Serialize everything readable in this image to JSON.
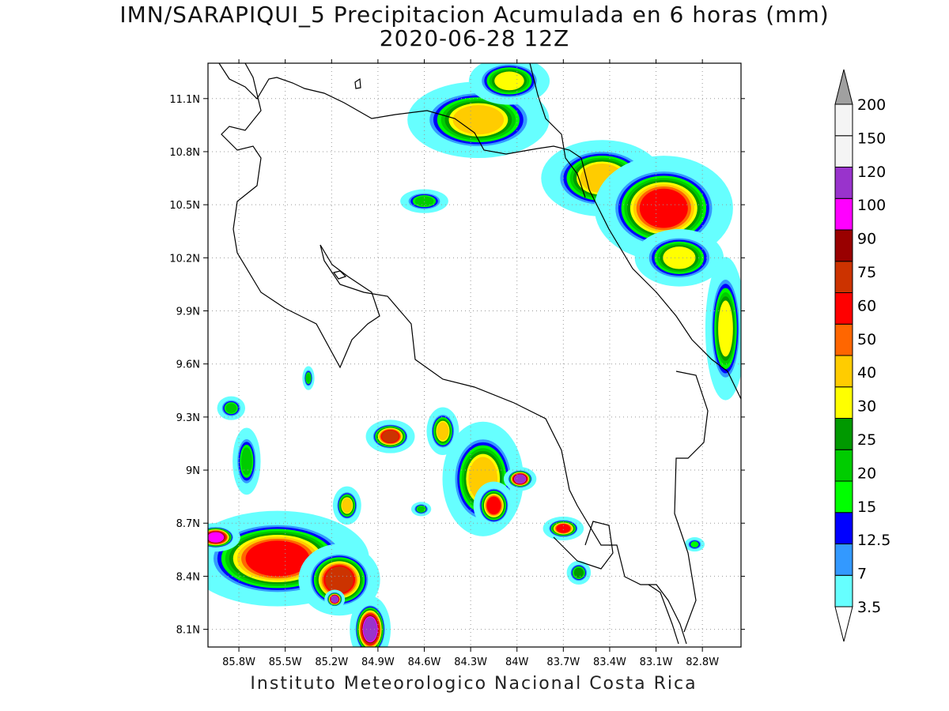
{
  "title": {
    "line1": "IMN/SARAPIQUI_5 Precipitacion Acumulada en 6 horas (mm)",
    "line2": "2020-06-28 12Z"
  },
  "credit": "Instituto Meteorologico Nacional Costa Rica",
  "map": {
    "lon_range": [
      -86.0,
      -82.55
    ],
    "lat_range": [
      8.0,
      11.3
    ],
    "lon_ticks": [
      {
        "value": -85.8,
        "label": "85.8W"
      },
      {
        "value": -85.5,
        "label": "85.5W"
      },
      {
        "value": -85.2,
        "label": "85.2W"
      },
      {
        "value": -84.9,
        "label": "84.9W"
      },
      {
        "value": -84.6,
        "label": "84.6W"
      },
      {
        "value": -84.3,
        "label": "84.3W"
      },
      {
        "value": -84.0,
        "label": "84W"
      },
      {
        "value": -83.7,
        "label": "83.7W"
      },
      {
        "value": -83.4,
        "label": "83.4W"
      },
      {
        "value": -83.1,
        "label": "83.1W"
      },
      {
        "value": -82.8,
        "label": "82.8W"
      }
    ],
    "lat_ticks": [
      {
        "value": 8.1,
        "label": "8.1N"
      },
      {
        "value": 8.4,
        "label": "8.4N"
      },
      {
        "value": 8.7,
        "label": "8.7N"
      },
      {
        "value": 9.0,
        "label": "9N"
      },
      {
        "value": 9.3,
        "label": "9.3N"
      },
      {
        "value": 9.6,
        "label": "9.6N"
      },
      {
        "value": 9.9,
        "label": "9.9N"
      },
      {
        "value": 10.2,
        "label": "10.2N"
      },
      {
        "value": 10.5,
        "label": "10.5N"
      },
      {
        "value": 10.8,
        "label": "10.8N"
      },
      {
        "value": 11.1,
        "label": "11.1N"
      }
    ],
    "grid": "dotted"
  },
  "colorbar": {
    "levels": [
      "3.5",
      "7",
      "12.5",
      "15",
      "20",
      "25",
      "30",
      "40",
      "50",
      "60",
      "75",
      "90",
      "100",
      "120",
      "150",
      "200"
    ],
    "colors": [
      "#66ffff",
      "#3399ff",
      "#0000ff",
      "#00ff00",
      "#00cc00",
      "#009900",
      "#ffff00",
      "#ffcc00",
      "#ff6600",
      "#ff0000",
      "#cc3300",
      "#990000",
      "#ff00ff",
      "#9933cc",
      "#f4f4f4",
      "#a0a0a0"
    ],
    "extend": "both"
  },
  "precip_cells": [
    {
      "lon": -84.25,
      "lat": 10.98,
      "rx": 0.35,
      "ry": 0.16,
      "level": 40
    },
    {
      "lon": -84.05,
      "lat": 11.2,
      "rx": 0.2,
      "ry": 0.1,
      "level": 30
    },
    {
      "lon": -83.45,
      "lat": 10.65,
      "rx": 0.3,
      "ry": 0.16,
      "level": 40
    },
    {
      "lon": -83.05,
      "lat": 10.48,
      "rx": 0.34,
      "ry": 0.22,
      "level": 60
    },
    {
      "lon": -82.95,
      "lat": 10.2,
      "rx": 0.22,
      "ry": 0.12,
      "level": 30
    },
    {
      "lon": -82.65,
      "lat": 9.8,
      "rx": 0.1,
      "ry": 0.3,
      "level": 30
    },
    {
      "lon": -84.6,
      "lat": 10.52,
      "rx": 0.12,
      "ry": 0.05,
      "level": 20
    },
    {
      "lon": -85.55,
      "lat": 8.5,
      "rx": 0.45,
      "ry": 0.2,
      "level": 60
    },
    {
      "lon": -85.15,
      "lat": 8.38,
      "rx": 0.2,
      "ry": 0.15,
      "level": 75
    },
    {
      "lon": -84.95,
      "lat": 8.1,
      "rx": 0.1,
      "ry": 0.14,
      "level": 120
    },
    {
      "lon": -85.95,
      "lat": 8.62,
      "rx": 0.12,
      "ry": 0.06,
      "level": 100
    },
    {
      "lon": -85.18,
      "lat": 8.27,
      "rx": 0.05,
      "ry": 0.04,
      "level": 120
    },
    {
      "lon": -84.82,
      "lat": 9.19,
      "rx": 0.12,
      "ry": 0.07,
      "level": 75
    },
    {
      "lon": -84.48,
      "lat": 9.22,
      "rx": 0.08,
      "ry": 0.1,
      "level": 40
    },
    {
      "lon": -84.22,
      "lat": 8.95,
      "rx": 0.2,
      "ry": 0.24,
      "level": 40
    },
    {
      "lon": -83.98,
      "lat": 8.95,
      "rx": 0.08,
      "ry": 0.05,
      "level": 120
    },
    {
      "lon": -84.15,
      "lat": 8.8,
      "rx": 0.1,
      "ry": 0.1,
      "level": 60
    },
    {
      "lon": -83.7,
      "lat": 8.67,
      "rx": 0.1,
      "ry": 0.05,
      "level": 60
    },
    {
      "lon": -85.75,
      "lat": 9.05,
      "rx": 0.07,
      "ry": 0.14,
      "level": 20
    },
    {
      "lon": -85.85,
      "lat": 9.35,
      "rx": 0.07,
      "ry": 0.05,
      "level": 20
    },
    {
      "lon": -85.1,
      "lat": 8.8,
      "rx": 0.07,
      "ry": 0.08,
      "level": 40
    },
    {
      "lon": -84.62,
      "lat": 8.78,
      "rx": 0.05,
      "ry": 0.03,
      "level": 20
    },
    {
      "lon": -83.6,
      "lat": 8.42,
      "rx": 0.06,
      "ry": 0.05,
      "level": 25
    },
    {
      "lon": -82.85,
      "lat": 8.58,
      "rx": 0.05,
      "ry": 0.03,
      "level": 15
    },
    {
      "lon": -85.35,
      "lat": 9.52,
      "rx": 0.03,
      "ry": 0.05,
      "level": 20
    }
  ]
}
